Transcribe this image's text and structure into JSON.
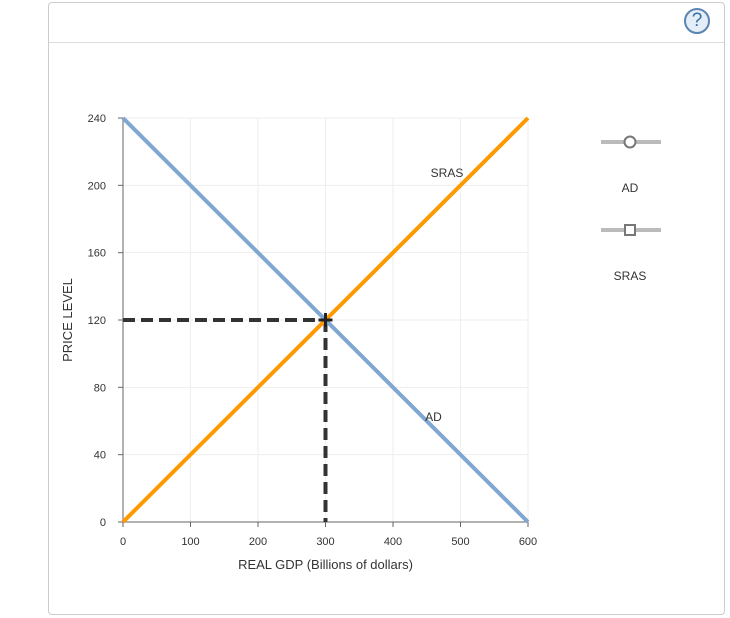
{
  "help_label": "?",
  "chart_data": {
    "type": "line",
    "xlabel": "REAL GDP (Billions of dollars)",
    "ylabel": "PRICE LEVEL",
    "xlim": [
      0,
      600
    ],
    "ylim": [
      0,
      240
    ],
    "xticks": [
      0,
      100,
      200,
      300,
      400,
      500,
      600
    ],
    "yticks": [
      0,
      40,
      80,
      120,
      160,
      200,
      240
    ],
    "grid": true,
    "series": [
      {
        "name": "AD",
        "color": "#7fa7d1",
        "points": [
          [
            0,
            240
          ],
          [
            600,
            0
          ]
        ],
        "label_at": [
          460,
          60
        ],
        "marker": "circle"
      },
      {
        "name": "SRAS",
        "color": "#ff9900",
        "points": [
          [
            0,
            0
          ],
          [
            600,
            240
          ]
        ],
        "label_at": [
          480,
          205
        ],
        "marker": "square"
      }
    ],
    "equilibrium": {
      "x": 300,
      "y": 120,
      "style": "dashed",
      "color": "#333333"
    },
    "legend": {
      "placement": "right",
      "items": [
        "AD",
        "SRAS"
      ]
    }
  }
}
